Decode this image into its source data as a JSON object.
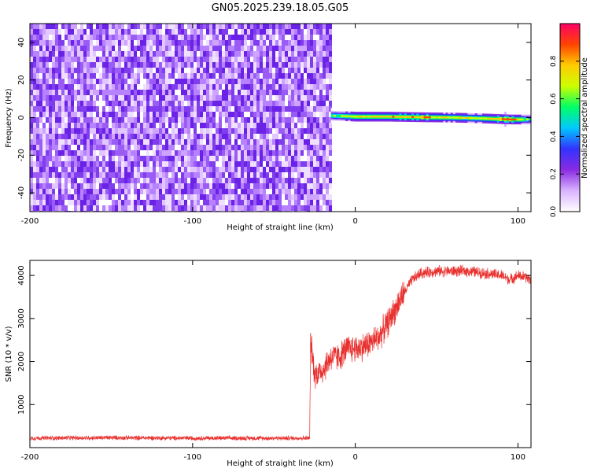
{
  "figure": {
    "title": "GN05.2025.239.18.05.G05"
  },
  "chart_data": [
    {
      "type": "heatmap",
      "title": "GN05.2025.239.18.05.G05",
      "xlabel": "Height of straight line (km)",
      "ylabel": "Frequency (Hz)",
      "xlim": [
        -200,
        108
      ],
      "ylim": [
        -50,
        50
      ],
      "x_ticks": [
        -200,
        -100,
        0,
        100
      ],
      "y_ticks": [
        -40,
        -20,
        0,
        20,
        40
      ],
      "noise_region_x": [
        -200,
        -15
      ],
      "signal_band": {
        "x": [
          -15,
          0,
          20,
          40,
          60,
          80,
          95,
          108
        ],
        "frequency_hz": [
          1,
          0.5,
          0.5,
          0.2,
          0,
          -0.5,
          -1,
          -1
        ],
        "peak_amplitude": [
          0.7,
          0.85,
          0.9,
          0.95,
          0.8,
          0.85,
          1.0,
          0.6
        ]
      },
      "colorbar": {
        "label": "Normalized spectral amplitude",
        "range": [
          0,
          1
        ],
        "ticks": [
          0.0,
          0.2,
          0.4,
          0.6,
          0.8
        ],
        "colors": [
          "#ffffff",
          "#d9b3ff",
          "#8a2be2",
          "#3333ff",
          "#00c8ff",
          "#00ff66",
          "#ccff00",
          "#ffcc00",
          "#ff4400",
          "#ff0066"
        ]
      }
    },
    {
      "type": "line",
      "xlabel": "Height of straight line (km)",
      "ylabel": "SNR (10 * v/v)",
      "xlim": [
        -200,
        108
      ],
      "ylim": [
        0,
        4350
      ],
      "x_ticks": [
        -200,
        -100,
        0,
        100
      ],
      "y_ticks": [
        1000,
        2000,
        3000,
        4000
      ],
      "series": [
        {
          "color": "#e8312f",
          "x": [
            -200,
            -150,
            -100,
            -50,
            -28,
            -27.5,
            -25,
            -20,
            -15,
            -10,
            -5,
            0,
            5,
            10,
            15,
            20,
            25,
            30,
            35,
            40,
            50,
            60,
            70,
            80,
            90,
            95,
            100,
            105,
            108
          ],
          "y": [
            220,
            230,
            220,
            220,
            220,
            2500,
            1700,
            1800,
            2100,
            2100,
            2300,
            2300,
            2350,
            2450,
            2600,
            2900,
            3250,
            3600,
            3900,
            4050,
            4100,
            4100,
            4100,
            4050,
            4000,
            3900,
            4000,
            3950,
            3900
          ]
        }
      ]
    }
  ]
}
